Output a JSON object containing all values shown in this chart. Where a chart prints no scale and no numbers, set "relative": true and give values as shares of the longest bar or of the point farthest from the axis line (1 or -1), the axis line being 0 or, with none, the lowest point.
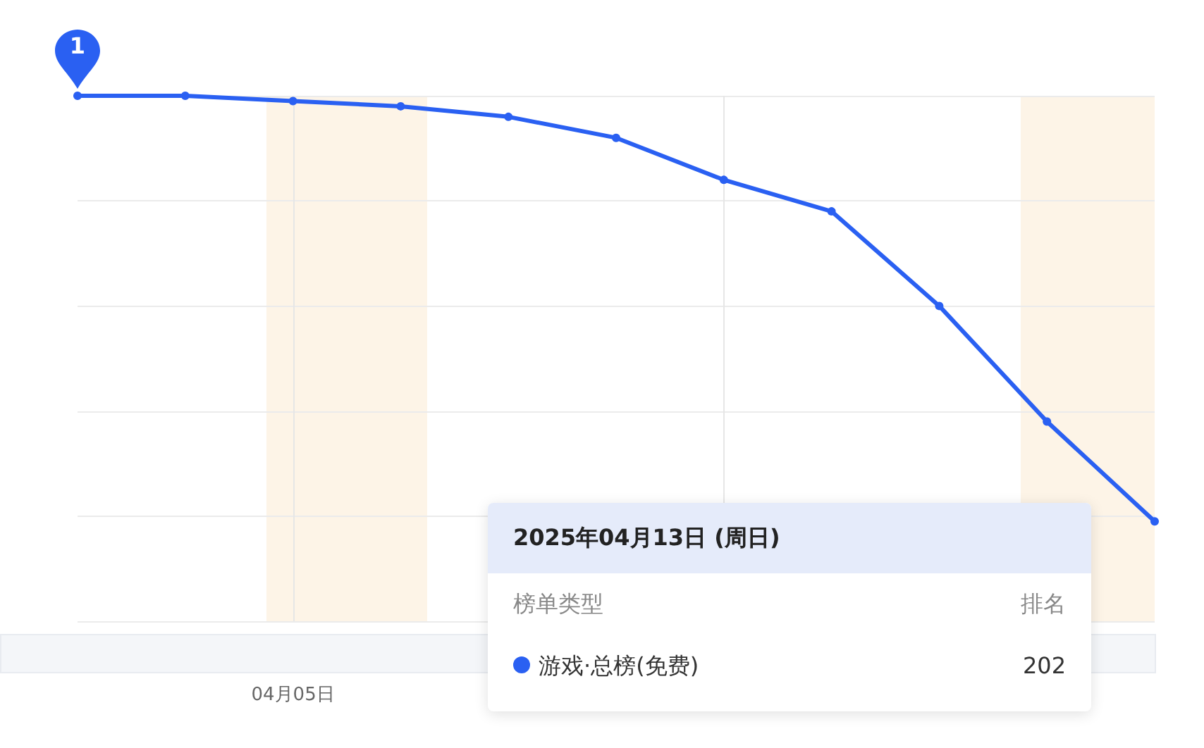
{
  "chart_data": {
    "type": "line",
    "relative": true,
    "categories": [
      null,
      null,
      null,
      null,
      null,
      null,
      null,
      null,
      null,
      null,
      null
    ],
    "series": [
      {
        "color": "#2a60f2",
        "values": [
          1,
          1,
          0.99,
          0.98,
          0.96,
          0.92,
          0.84,
          0.78,
          0.6,
          0.38,
          0.19
        ]
      }
    ],
    "annotations": [
      {
        "text": "1",
        "y": 1
      },
      "04月05日",
      "2025年04月13日 (周日)",
      "榜单类型",
      "排名",
      "游戏·总榜(免费)",
      "202"
    ],
    "grid": true,
    "marker": "circle",
    "line_style": "solid"
  }
}
